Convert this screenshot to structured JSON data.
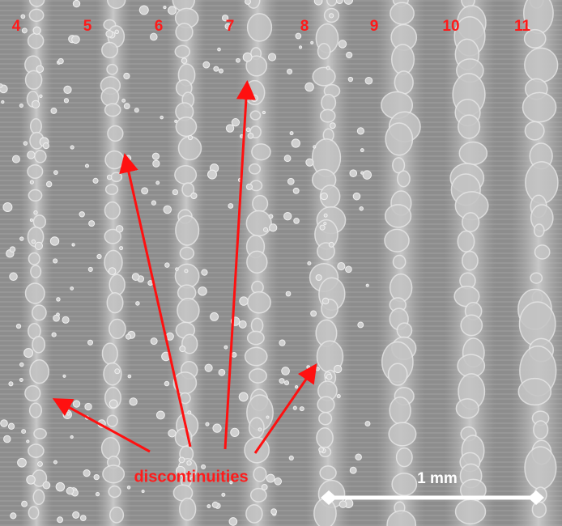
{
  "track_labels": [
    "4",
    "5",
    "6",
    "7",
    "8",
    "9",
    "10",
    "11"
  ],
  "annotation": "discontinuities",
  "scale_bar": "1 mm"
}
